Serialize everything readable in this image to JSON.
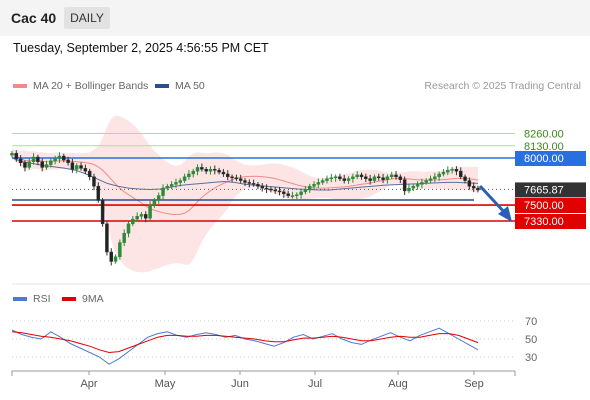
{
  "header": {
    "title": "Cac 40",
    "timeframe": "DAILY"
  },
  "timestamp": "Tuesday, September 2, 2025 4:56:55 PM CET",
  "legend_main": [
    {
      "label": "MA 20 + Bollinger Bands",
      "color": "#f08a8a"
    },
    {
      "label": "MA 50",
      "color": "#2b4f8c"
    }
  ],
  "credit": "Research © 2025 Trading Central",
  "legend_rsi": [
    {
      "label": "RSI",
      "color": "#4a7bd6"
    },
    {
      "label": "9MA",
      "color": "#e00000"
    }
  ],
  "chart_data": [
    {
      "type": "candlestick",
      "months": [
        "Apr",
        "May",
        "Jun",
        "Jul",
        "Aug",
        "Sep"
      ],
      "levels": [
        {
          "value": 8260,
          "label": "8260.00",
          "color": "#b5d99c",
          "label_color": "#3a8a1a",
          "style": "text"
        },
        {
          "value": 8130,
          "label": "8130.00",
          "color": "#b5d99c",
          "label_color": "#3a8a1a",
          "style": "text"
        },
        {
          "value": 8000,
          "label": "8000.00",
          "color": "#2a6fe0",
          "label_color": "#ffffff",
          "style": "box"
        },
        {
          "value": 7665.87,
          "label": "7665.87",
          "color": "#333333",
          "label_color": "#ffffff",
          "style": "box-dark"
        },
        {
          "value": 7500,
          "label": "7500.00",
          "color": "#e00000",
          "label_color": "#ffffff",
          "style": "box"
        },
        {
          "value": 7330,
          "label": "7330.00",
          "color": "#e00000",
          "label_color": "#ffffff",
          "style": "box"
        }
      ],
      "closes": [
        8050,
        7990,
        7950,
        7900,
        7960,
        8010,
        7960,
        7900,
        7930,
        7970,
        7990,
        8020,
        7980,
        7950,
        7880,
        7920,
        7890,
        7860,
        7800,
        7700,
        7550,
        7300,
        7000,
        6900,
        6950,
        7100,
        7200,
        7300,
        7350,
        7380,
        7400,
        7360,
        7500,
        7550,
        7600,
        7680,
        7700,
        7720,
        7740,
        7760,
        7800,
        7830,
        7860,
        7900,
        7880,
        7860,
        7880,
        7870,
        7850,
        7830,
        7800,
        7790,
        7780,
        7760,
        7740,
        7730,
        7720,
        7700,
        7680,
        7670,
        7660,
        7650,
        7640,
        7620,
        7600,
        7600,
        7610,
        7640,
        7660,
        7700,
        7720,
        7740,
        7760,
        7780,
        7790,
        7800,
        7780,
        7760,
        7780,
        7800,
        7820,
        7800,
        7780,
        7760,
        7800,
        7790,
        7770,
        7800,
        7820,
        7800,
        7770,
        7650,
        7680,
        7700,
        7720,
        7740,
        7760,
        7780,
        7800,
        7830,
        7850,
        7870,
        7880,
        7860,
        7800,
        7760,
        7700,
        7680,
        7660
      ],
      "ma50_y": [
        8000,
        7960,
        7940,
        7920,
        7905,
        7890,
        7870,
        7830,
        7780,
        7730,
        7700,
        7680,
        7670,
        7665,
        7670,
        7690,
        7710,
        7720,
        7730,
        7740,
        7750,
        7740,
        7720,
        7710,
        7700,
        7690,
        7680,
        7670,
        7665,
        7660,
        7660,
        7670,
        7680,
        7690,
        7700,
        7710,
        7715,
        7720,
        7725,
        7730,
        7735,
        7740,
        7740,
        7735,
        7730
      ],
      "rsi": {
        "ticks": [
          70,
          50,
          30
        ],
        "rsi_values": [
          60,
          55,
          52,
          50,
          58,
          52,
          45,
          40,
          35,
          30,
          22,
          28,
          36,
          44,
          52,
          56,
          58,
          54,
          52,
          55,
          57,
          55,
          52,
          54,
          50,
          48,
          45,
          42,
          46,
          52,
          55,
          50,
          53,
          56,
          50,
          46,
          44,
          49,
          53,
          57,
          52,
          48,
          54,
          58,
          62,
          56,
          50,
          44,
          38
        ],
        "ma9_values": [
          58,
          57,
          55,
          53,
          52,
          50,
          48,
          45,
          42,
          38,
          35,
          36,
          40,
          44,
          48,
          52,
          54,
          54,
          53,
          53,
          54,
          54,
          53,
          52,
          51,
          50,
          48,
          47,
          47,
          49,
          51,
          51,
          52,
          53,
          52,
          50,
          48,
          48,
          50,
          52,
          53,
          52,
          52,
          54,
          56,
          56,
          54,
          50,
          46
        ]
      }
    }
  ]
}
